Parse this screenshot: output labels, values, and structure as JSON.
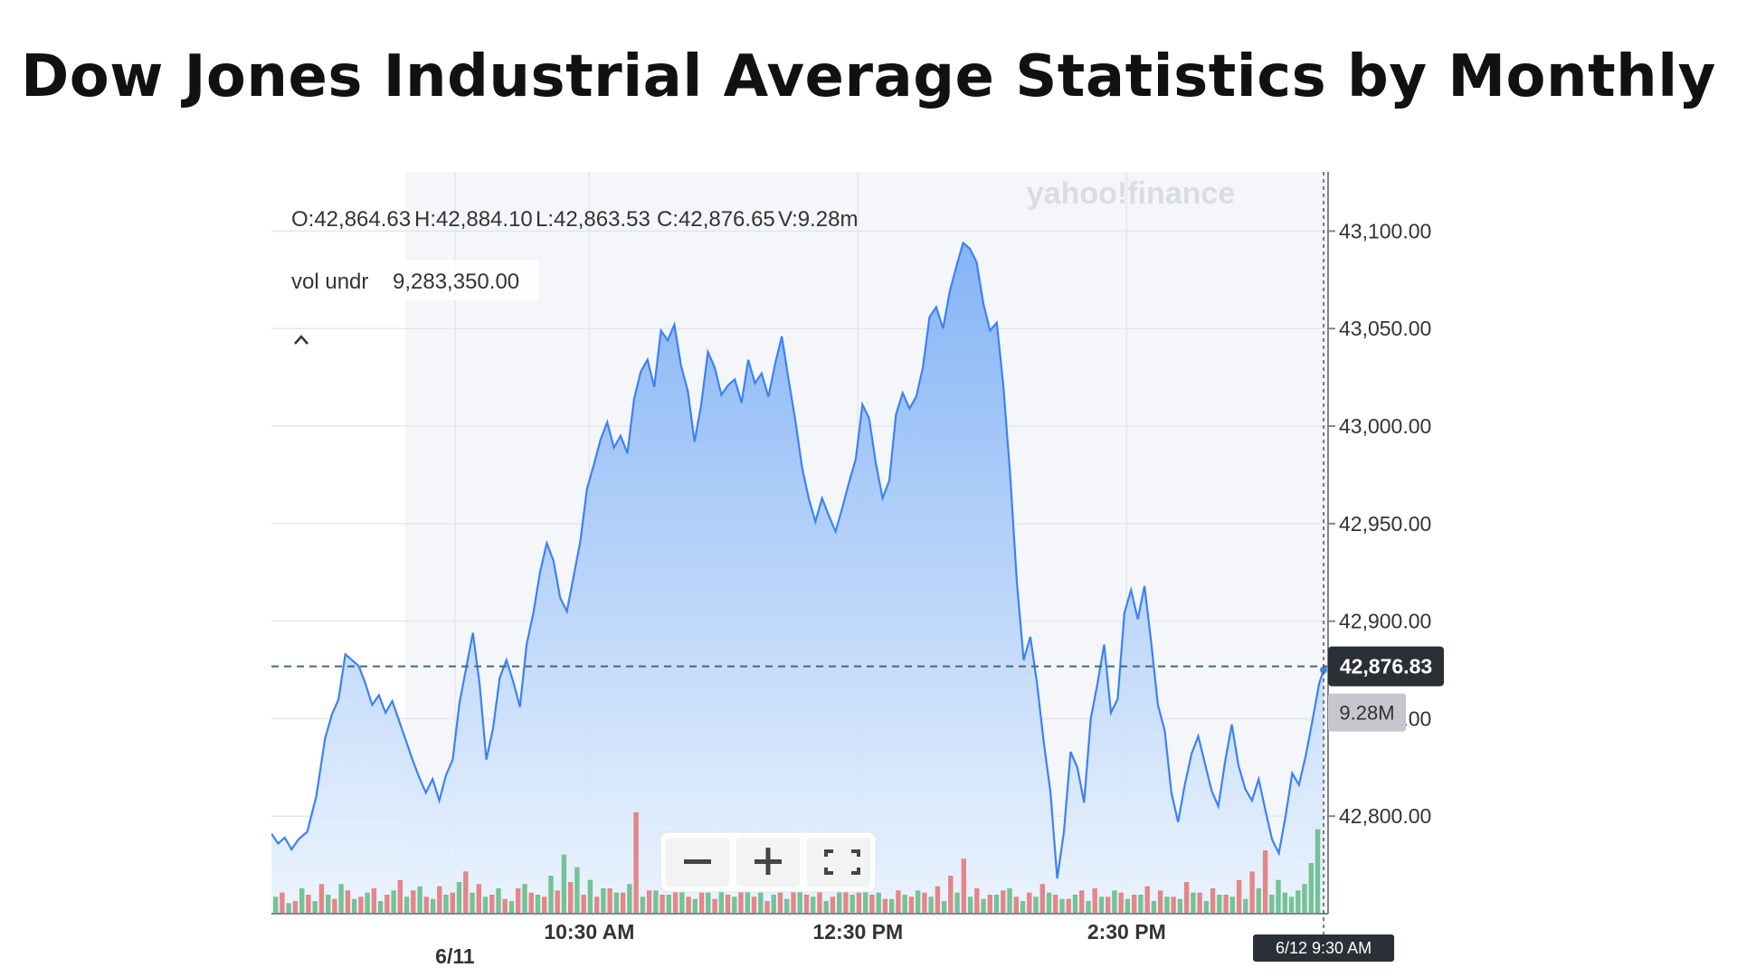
{
  "page": {
    "title": "Dow Jones Industrial Average Statistics by Monthly"
  },
  "brand": {
    "watermark": "yahoo!finance"
  },
  "ohlc": {
    "open": "O:42,864.63",
    "high": "H:42,884.10",
    "low": "L:42,863.53",
    "close": "C:42,876.65",
    "volume": "V:9.28m"
  },
  "vol_undr": {
    "label": "vol undr",
    "value": "9,283,350.00"
  },
  "collapse_icon": "chevron-up-icon",
  "controls": [
    {
      "name": "zoom-out-button",
      "icon": "minus-icon"
    },
    {
      "name": "zoom-in-button",
      "icon": "plus-icon"
    },
    {
      "name": "fullscreen-button",
      "icon": "fullscreen-icon"
    }
  ],
  "current_price_label": "42,876.83",
  "current_volume_label": "9.28M",
  "crosshair_label": "6/12 9:30 AM",
  "colors": {
    "line": "#3b82f6",
    "fill_top": "#7fb0f5",
    "fill_bottom": "#eaf3fe",
    "vol_up": "#58b67a",
    "vol_down": "#e36a6a",
    "badge_dark": "#2b2f36",
    "badge_gray": "#c4c7cc"
  },
  "chart_data": {
    "type": "area",
    "ylim": [
      42750,
      43135
    ],
    "y_ticks": [
      "43,100.00",
      "43,050.00",
      "43,000.00",
      "42,950.00",
      "42,900.00",
      "42,850.00",
      "42,800.00"
    ],
    "y_tick_values": [
      43100,
      43050,
      43000,
      42950,
      42900,
      42850,
      42800
    ],
    "x_ticks": [
      {
        "label": "6/11",
        "t": 0
      },
      {
        "label": "10:30 AM",
        "t": 60
      },
      {
        "label": "12:30 PM",
        "t": 180
      },
      {
        "label": "2:30 PM",
        "t": 300
      }
    ],
    "xlim": [
      -82,
      390
    ],
    "reference_value": 42876.83,
    "series": [
      {
        "values": [
          [
            -82,
            42791
          ],
          [
            -79,
            42786
          ],
          [
            -76,
            42789
          ],
          [
            -73,
            42783
          ],
          [
            -70,
            42788
          ],
          [
            -66,
            42792
          ],
          [
            -62,
            42810
          ],
          [
            -58,
            42840
          ],
          [
            -55,
            42852
          ],
          [
            -52,
            42860
          ],
          [
            -49,
            42883
          ],
          [
            -46,
            42880
          ],
          [
            -43,
            42877
          ],
          [
            -40,
            42868
          ],
          [
            -37,
            42857
          ],
          [
            -34,
            42862
          ],
          [
            -31,
            42853
          ],
          [
            -28,
            42859
          ],
          [
            -25,
            42849
          ],
          [
            -22,
            42839
          ],
          [
            -19,
            42829
          ],
          [
            -16,
            42820
          ],
          [
            -13,
            42812
          ],
          [
            -10,
            42819
          ],
          [
            -7,
            42808
          ],
          [
            -4,
            42821
          ],
          [
            -1,
            42829
          ],
          [
            2,
            42858
          ],
          [
            5,
            42876
          ],
          [
            8,
            42894
          ],
          [
            11,
            42868
          ],
          [
            14,
            42829
          ],
          [
            17,
            42845
          ],
          [
            20,
            42871
          ],
          [
            23,
            42880
          ],
          [
            26,
            42869
          ],
          [
            29,
            42856
          ],
          [
            32,
            42888
          ],
          [
            35,
            42904
          ],
          [
            38,
            42925
          ],
          [
            41,
            42940
          ],
          [
            44,
            42931
          ],
          [
            47,
            42912
          ],
          [
            50,
            42905
          ],
          [
            53,
            42923
          ],
          [
            56,
            42941
          ],
          [
            59,
            42968
          ],
          [
            62,
            42980
          ],
          [
            65,
            42993
          ],
          [
            68,
            43002
          ],
          [
            71,
            42989
          ],
          [
            74,
            42995
          ],
          [
            77,
            42986
          ],
          [
            80,
            43014
          ],
          [
            83,
            43028
          ],
          [
            86,
            43034
          ],
          [
            89,
            43020
          ],
          [
            92,
            43049
          ],
          [
            95,
            43044
          ],
          [
            98,
            43052
          ],
          [
            101,
            43031
          ],
          [
            104,
            43018
          ],
          [
            107,
            42992
          ],
          [
            110,
            43011
          ],
          [
            113,
            43038
          ],
          [
            116,
            43030
          ],
          [
            119,
            43016
          ],
          [
            122,
            43021
          ],
          [
            125,
            43024
          ],
          [
            128,
            43012
          ],
          [
            131,
            43034
          ],
          [
            134,
            43022
          ],
          [
            137,
            43027
          ],
          [
            140,
            43015
          ],
          [
            143,
            43032
          ],
          [
            146,
            43046
          ],
          [
            149,
            43024
          ],
          [
            152,
            43003
          ],
          [
            155,
            42979
          ],
          [
            158,
            42963
          ],
          [
            161,
            42951
          ],
          [
            164,
            42963
          ],
          [
            167,
            42954
          ],
          [
            170,
            42946
          ],
          [
            173,
            42958
          ],
          [
            176,
            42971
          ],
          [
            179,
            42983
          ],
          [
            182,
            43011
          ],
          [
            185,
            43004
          ],
          [
            188,
            42981
          ],
          [
            191,
            42963
          ],
          [
            194,
            42972
          ],
          [
            197,
            43006
          ],
          [
            200,
            43017
          ],
          [
            203,
            43009
          ],
          [
            206,
            43015
          ],
          [
            209,
            43030
          ],
          [
            212,
            43056
          ],
          [
            215,
            43061
          ],
          [
            218,
            43050
          ],
          [
            221,
            43069
          ],
          [
            224,
            43082
          ],
          [
            227,
            43094
          ],
          [
            230,
            43091
          ],
          [
            233,
            43084
          ],
          [
            236,
            43063
          ],
          [
            239,
            43049
          ],
          [
            242,
            43053
          ],
          [
            245,
            43020
          ],
          [
            248,
            42975
          ],
          [
            251,
            42920
          ],
          [
            254,
            42880
          ],
          [
            257,
            42892
          ],
          [
            260,
            42868
          ],
          [
            263,
            42838
          ],
          [
            266,
            42812
          ],
          [
            269,
            42768
          ],
          [
            272,
            42792
          ],
          [
            275,
            42833
          ],
          [
            278,
            42825
          ],
          [
            281,
            42807
          ],
          [
            284,
            42850
          ],
          [
            287,
            42868
          ],
          [
            290,
            42888
          ],
          [
            293,
            42853
          ],
          [
            296,
            42860
          ],
          [
            299,
            42904
          ],
          [
            302,
            42916
          ],
          [
            305,
            42901
          ],
          [
            308,
            42918
          ],
          [
            311,
            42889
          ],
          [
            314,
            42857
          ],
          [
            317,
            42844
          ],
          [
            320,
            42812
          ],
          [
            323,
            42797
          ],
          [
            326,
            42816
          ],
          [
            329,
            42832
          ],
          [
            332,
            42841
          ],
          [
            335,
            42827
          ],
          [
            338,
            42813
          ],
          [
            341,
            42805
          ],
          [
            344,
            42828
          ],
          [
            347,
            42847
          ],
          [
            350,
            42826
          ],
          [
            353,
            42814
          ],
          [
            356,
            42808
          ],
          [
            359,
            42819
          ],
          [
            362,
            42803
          ],
          [
            365,
            42788
          ],
          [
            368,
            42781
          ],
          [
            371,
            42800
          ],
          [
            374,
            42822
          ],
          [
            377,
            42816
          ],
          [
            380,
            42831
          ],
          [
            383,
            42849
          ],
          [
            386,
            42868
          ],
          [
            388,
            42875
          ]
        ]
      }
    ],
    "volume": {
      "ylim": [
        0,
        60
      ],
      "up_values": [
        8,
        5,
        12,
        6,
        9,
        14,
        7,
        10,
        6,
        11,
        8,
        13,
        7,
        9,
        15,
        10,
        8,
        12,
        6,
        14,
        9,
        18,
        28,
        22,
        16,
        12,
        10,
        14,
        8,
        11,
        9,
        13,
        7,
        10,
        12,
        8,
        16,
        10,
        9,
        7,
        11,
        8,
        6,
        12,
        9,
        14,
        10,
        7,
        9,
        11,
        8,
        6,
        10,
        8,
        7,
        9,
        12,
        6,
        8,
        10,
        7,
        9,
        6,
        8,
        11,
        7,
        9,
        6,
        8,
        7,
        10,
        6,
        9,
        8,
        7,
        12,
        9,
        16,
        10,
        8,
        11,
        14,
        24,
        40
      ],
      "down_values": [
        10,
        6,
        9,
        14,
        7,
        11,
        8,
        12,
        9,
        16,
        11,
        8,
        13,
        10,
        20,
        14,
        9,
        7,
        12,
        10,
        8,
        11,
        15,
        9,
        8,
        12,
        10,
        48,
        11,
        9,
        36,
        8,
        10,
        7,
        9,
        12,
        8,
        6,
        10,
        14,
        9,
        11,
        8,
        12,
        10,
        9,
        7,
        11,
        8,
        10,
        13,
        18,
        26,
        12,
        9,
        11,
        8,
        10,
        14,
        9,
        7,
        11,
        12,
        8,
        10,
        9,
        13,
        11,
        8,
        15,
        10,
        12,
        9,
        16,
        20,
        30
      ]
    }
  }
}
